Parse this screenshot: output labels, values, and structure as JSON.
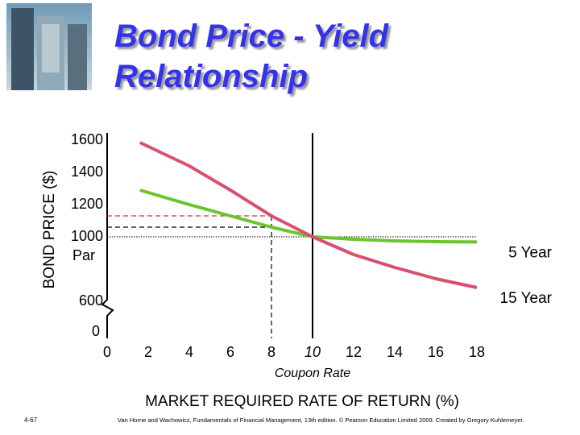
{
  "chart_data": {
    "type": "line",
    "title": "Bond Price - Yield Relationship",
    "x_label": "MARKET REQUIRED RATE OF RETURN (%)",
    "y_label": "BOND PRICE ($)",
    "x": [
      1.6,
      4,
      6,
      8,
      10,
      12,
      14,
      16,
      18
    ],
    "series": [
      {
        "name": "5 Year",
        "color": "#6cc52c",
        "values": [
          1290,
          1200,
          1130,
          1060,
          1000,
          985,
          975,
          970,
          968
        ]
      },
      {
        "name": "15 Year",
        "color": "#d9506e",
        "values": [
          1585,
          1440,
          1290,
          1130,
          1000,
          890,
          810,
          740,
          685
        ]
      }
    ],
    "xlim": [
      0,
      21
    ],
    "xticks": [
      0,
      2,
      4,
      6,
      8,
      10,
      12,
      14,
      16,
      18
    ],
    "ylim": [
      400,
      1650
    ],
    "yticks": [
      600,
      1000,
      1200,
      1400,
      1600
    ],
    "y_break_tick": 0,
    "par_label": "Par",
    "par_value": 1000,
    "coupon_rate": 10,
    "coupon_rate_label": "Coupon Rate",
    "coupon_color": "#cc0000",
    "reference_x": 8,
    "reference_values": [
      1130,
      1060
    ],
    "page_number": "4-67",
    "source": "Van Horne and Wachowicz, Fundamentals of Financial Management, 13th edition. © Pearson Education Limited 2009. Created by Gregory Kuhlemeyer."
  }
}
